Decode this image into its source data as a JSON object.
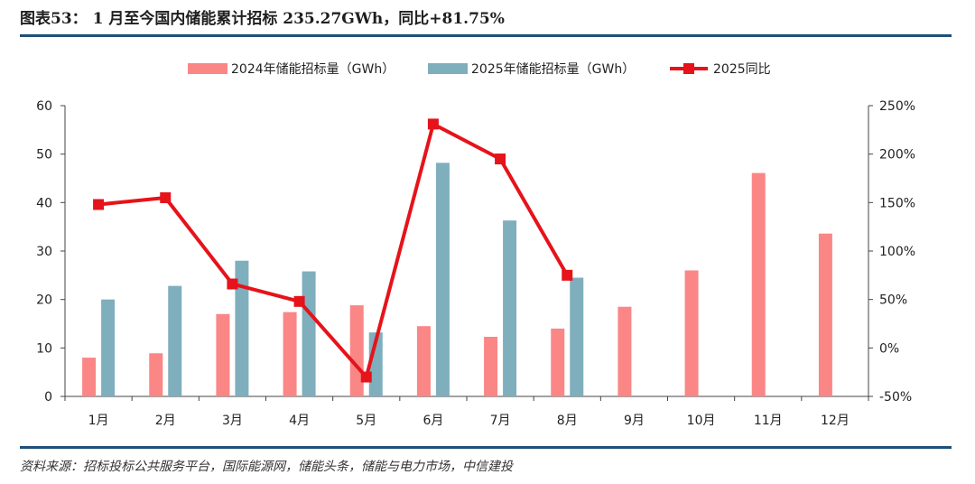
{
  "title": "图表53：  1 月至今国内储能累计招标 235.27GWh，同比+81.75%",
  "source": "资料来源：招标投标公共服务平台，国际能源网，储能头条，储能与电力市场，中信建投",
  "colors": {
    "s2024": "#fb8686",
    "s2025": "#7faebd",
    "yoy": "#e6131a",
    "rule": "#1f4e79"
  },
  "chart_data": {
    "type": "bar",
    "categories": [
      "1月",
      "2月",
      "3月",
      "4月",
      "5月",
      "6月",
      "7月",
      "8月",
      "9月",
      "10月",
      "11月",
      "12月"
    ],
    "series": [
      {
        "name": "2024年储能招标量（GWh）",
        "values": [
          8.0,
          8.9,
          17.0,
          17.4,
          18.8,
          14.5,
          12.3,
          14.0,
          18.5,
          26.0,
          46.1,
          33.6
        ]
      },
      {
        "name": "2025年储能招标量（GWh）",
        "values": [
          20.0,
          22.8,
          28.0,
          25.8,
          13.2,
          48.2,
          36.3,
          24.5,
          null,
          null,
          null,
          null
        ]
      }
    ],
    "line_series": [
      {
        "name": "2025同比",
        "type": "line",
        "axis": "right",
        "values": [
          148,
          155,
          66,
          48,
          -30,
          231,
          195,
          75,
          null,
          null,
          null,
          null
        ]
      }
    ],
    "y_left": {
      "ticks": [
        "0",
        "10",
        "20",
        "30",
        "40",
        "50",
        "60"
      ],
      "ylim": [
        0,
        60
      ]
    },
    "y_right": {
      "ticks": [
        "-50%",
        "0%",
        "50%",
        "100%",
        "150%",
        "200%",
        "250%"
      ],
      "ylim": [
        -50,
        250
      ]
    },
    "legend_position": "top-center",
    "grid": false
  }
}
